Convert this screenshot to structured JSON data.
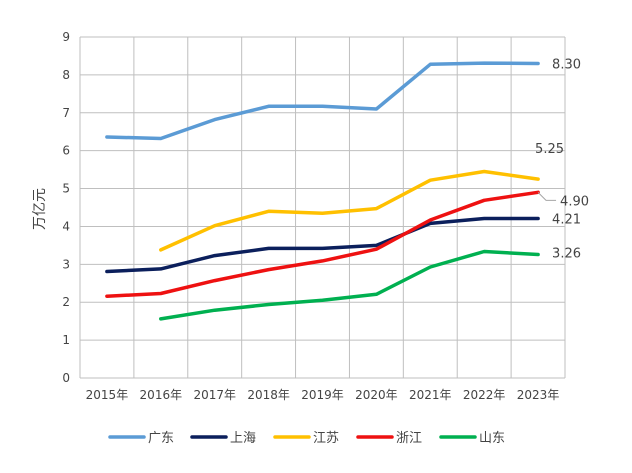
{
  "chart_data": {
    "type": "line",
    "title": "",
    "xlabel": "",
    "ylabel": "万亿元",
    "ylim": [
      0,
      9
    ],
    "yticks": [
      0,
      1,
      2,
      3,
      4,
      5,
      6,
      7,
      8,
      9
    ],
    "grid": true,
    "legend_position": "bottom",
    "categories": [
      "2015年",
      "2016年",
      "2017年",
      "2018年",
      "2019年",
      "2020年",
      "2021年",
      "2022年",
      "2023年"
    ],
    "series": [
      {
        "name": "广东",
        "color": "#5b9bd5",
        "values": [
          6.36,
          6.32,
          6.82,
          7.17,
          7.17,
          7.1,
          8.28,
          8.31,
          8.3
        ]
      },
      {
        "name": "上海",
        "color": "#0b1f5c",
        "values": [
          2.81,
          2.88,
          3.23,
          3.42,
          3.42,
          3.5,
          4.08,
          4.21,
          4.21
        ]
      },
      {
        "name": "江苏",
        "color": "#ffc000",
        "values": [
          null,
          3.38,
          4.02,
          4.4,
          4.35,
          4.47,
          5.22,
          5.45,
          5.25
        ]
      },
      {
        "name": "浙江",
        "color": "#ee1111",
        "values": [
          2.16,
          2.23,
          2.57,
          2.86,
          3.09,
          3.4,
          4.17,
          4.69,
          4.9
        ]
      },
      {
        "name": "山东",
        "color": "#00b050",
        "values": [
          null,
          1.56,
          1.79,
          1.94,
          2.05,
          2.21,
          2.93,
          3.34,
          3.26
        ]
      }
    ],
    "data_labels": [
      {
        "series": "广东",
        "text": "8.30"
      },
      {
        "series": "江苏",
        "text": "5.25"
      },
      {
        "series": "浙江",
        "text": "4.90"
      },
      {
        "series": "上海",
        "text": "4.21"
      },
      {
        "series": "山东",
        "text": "3.26"
      }
    ]
  }
}
